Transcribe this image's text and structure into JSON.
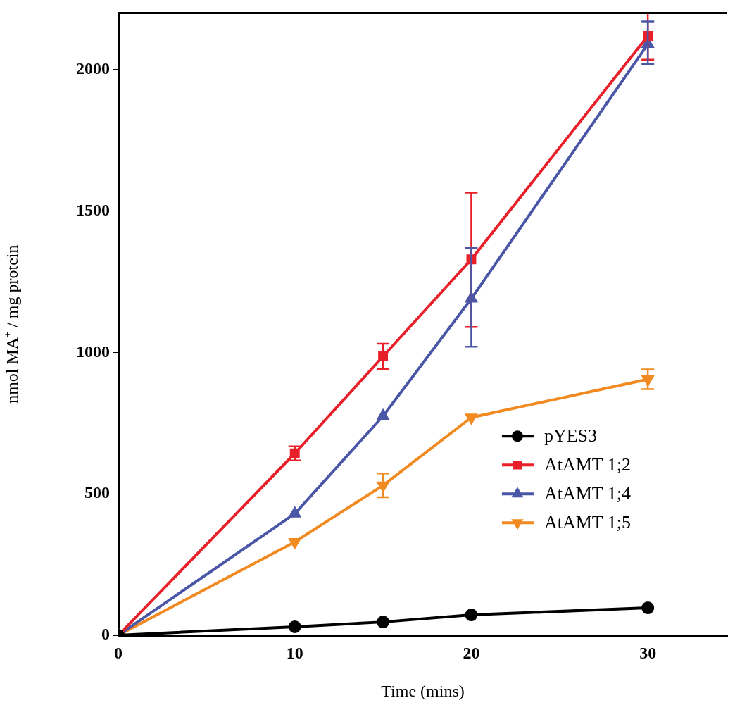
{
  "chart_data": {
    "type": "line",
    "xlabel": "Time (mins)",
    "ylabel": "nmol MA⁺ / mg protein",
    "x": [
      0,
      10,
      15,
      20,
      30
    ],
    "series": [
      {
        "name": "pYES3",
        "color": "#000000",
        "marker": "circle",
        "values": [
          0,
          30,
          47,
          72,
          97
        ]
      },
      {
        "name": "AtAMT 1;2",
        "color": "#e8202a",
        "marker": "square",
        "values": [
          0,
          643,
          986,
          1329,
          2119
        ],
        "errors": [
          null,
          25,
          45,
          [
            1090,
            1565
          ],
          [
            2035,
            2200
          ]
        ]
      },
      {
        "name": "AtAMT 1;4",
        "color": "#4a56a6",
        "marker": "triangle",
        "values": [
          0,
          430,
          775,
          1190,
          2090
        ],
        "errors": [
          null,
          null,
          null,
          [
            1020,
            1370
          ],
          [
            2020,
            2170
          ]
        ]
      },
      {
        "name": "AtAMT 1;5",
        "color": "#f18a21",
        "marker": "triangle-down",
        "values": [
          0,
          330,
          530,
          770,
          905
        ],
        "errors": [
          null,
          null,
          [
            488,
            572
          ],
          null,
          [
            870,
            940
          ]
        ]
      }
    ],
    "xlim": [
      0,
      34.5
    ],
    "ylim": [
      0,
      2200
    ],
    "xticks": [
      0,
      10,
      20,
      30
    ],
    "yticks": [
      0,
      500,
      1000,
      1500,
      2000
    ],
    "legend": "right",
    "grid": false
  }
}
